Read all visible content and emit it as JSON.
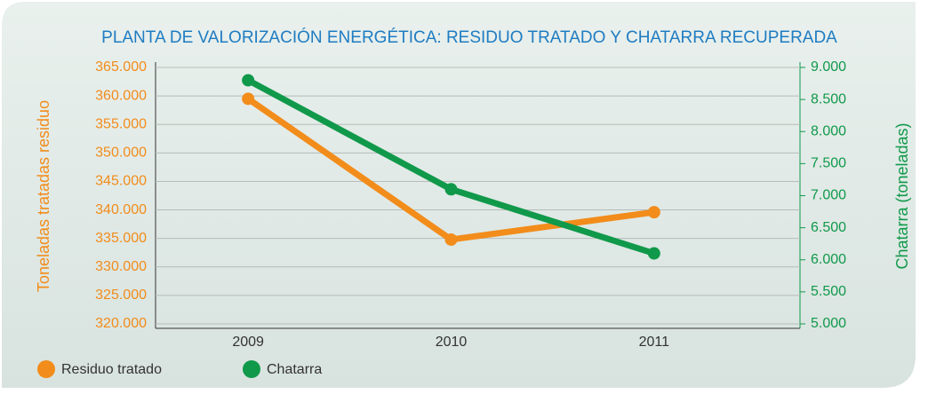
{
  "chart_data": {
    "type": "line",
    "title": "PLANTA DE VALORIZACIÓN ENERGÉTICA: RESIDUO TRATADO Y CHATARRA RECUPERADA",
    "y_label": "Toneladas tratadas residuo",
    "y2_label": "Chatarra (toneladas)",
    "categories": [
      "2009",
      "2010",
      "2011"
    ],
    "series": [
      {
        "name": "Residuo tratado",
        "color": "#f28c1b",
        "values": [
          359500,
          334800,
          339600
        ]
      },
      {
        "name": "Chatarra",
        "color": "#10994a",
        "axis": "y2",
        "values": [
          8800,
          7100,
          6100
        ]
      }
    ],
    "ylim": [
      320000,
      365000
    ],
    "yticks": [
      {
        "value": 320000,
        "label": "320.000"
      },
      {
        "value": 325000,
        "label": "325.000"
      },
      {
        "value": 330000,
        "label": "330.000"
      },
      {
        "value": 335000,
        "label": "335.000"
      },
      {
        "value": 340000,
        "label": "340.000"
      },
      {
        "value": 345000,
        "label": "345.000"
      },
      {
        "value": 350000,
        "label": "350.000"
      },
      {
        "value": 355000,
        "label": "355.000"
      },
      {
        "value": 360000,
        "label": "360.000"
      },
      {
        "value": 365000,
        "label": "365.000"
      }
    ],
    "y2lim": [
      5000,
      9000
    ],
    "y2ticks": [
      {
        "value": 5000,
        "label": "5.000"
      },
      {
        "value": 5500,
        "label": "5.500"
      },
      {
        "value": 6000,
        "label": "6.000"
      },
      {
        "value": 6500,
        "label": "6.500"
      },
      {
        "value": 7000,
        "label": "7.000"
      },
      {
        "value": 7500,
        "label": "7.500"
      },
      {
        "value": 8000,
        "label": "8.000"
      },
      {
        "value": 8500,
        "label": "8.500"
      },
      {
        "value": 9000,
        "label": "9.000"
      }
    ],
    "grid": true
  }
}
